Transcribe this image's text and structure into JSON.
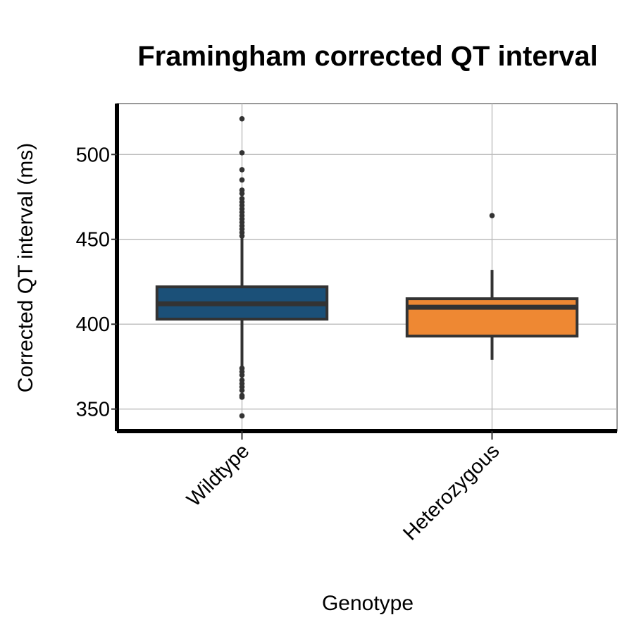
{
  "chart_data": {
    "type": "box",
    "title": "Framingham corrected QT interval",
    "xlabel": "Genotype",
    "ylabel": "Corrected QT interval (ms)",
    "ylim": [
      337,
      530
    ],
    "yticks": [
      350,
      400,
      450,
      500
    ],
    "grid": true,
    "categories": [
      "Wildtype",
      "Heterozygous"
    ],
    "boxes": [
      {
        "category": "Wildtype",
        "color": "#1b5078",
        "q1": 403,
        "median": 412,
        "q3": 422,
        "whisker_low": 375,
        "whisker_high": 451,
        "outliers": [
          521,
          501,
          491,
          485,
          479,
          477,
          474,
          472,
          470,
          468,
          466,
          464,
          462,
          460,
          458,
          456,
          454,
          452,
          374,
          372,
          370,
          367,
          365,
          363,
          361,
          358,
          357,
          346
        ]
      },
      {
        "category": "Heterozygous",
        "color": "#ee8833",
        "q1": 393,
        "median": 410,
        "q3": 415,
        "whisker_low": 379,
        "whisker_high": 432,
        "outliers": [
          464
        ]
      }
    ]
  }
}
